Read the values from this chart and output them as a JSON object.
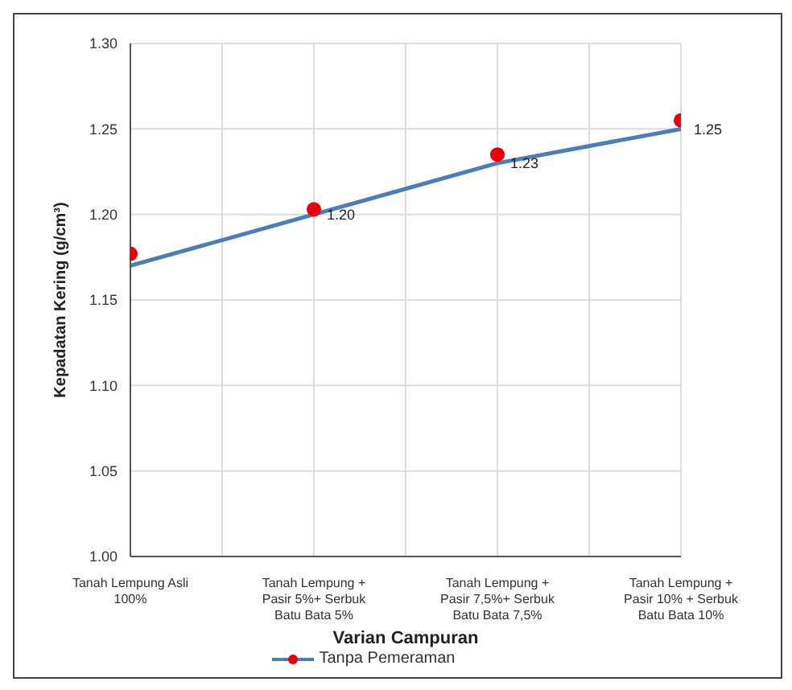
{
  "chart_data": {
    "type": "line",
    "xlabel": "Varian Campuran",
    "ylabel": "Kepadatan Kering (g/cm³)",
    "categories": [
      "Tanah Lempung Asli 100%",
      "Tanah Lempung  + Pasir 5%+ Serbuk Batu Bata 5%",
      "Tanah Lempung + Pasir 7,5%+ Serbuk Batu Bata 7,5%",
      "Tanah Lempung + Pasir 10% + Serbuk Batu Bata 10%"
    ],
    "series": [
      {
        "name": "Tanpa Pemeraman",
        "color": "#4a7ebb",
        "values": [
          1.17,
          1.2,
          1.23,
          1.25
        ],
        "value_labels": [
          null,
          "1.20",
          "1.23",
          "1.25"
        ],
        "marker": "none"
      },
      {
        "type": "scatter",
        "color": "#e8000b",
        "values": [
          1.177,
          1.203,
          1.235,
          1.255
        ],
        "marker": "circle"
      }
    ],
    "ylim": [
      1.0,
      1.3
    ],
    "yticks": [
      {
        "value": 1.0,
        "label": "1.00"
      },
      {
        "value": 1.05,
        "label": "1.05"
      },
      {
        "value": 1.1,
        "label": "1.10"
      },
      {
        "value": 1.15,
        "label": "1.15"
      },
      {
        "value": 1.2,
        "label": "1.20"
      },
      {
        "value": 1.25,
        "label": "1.25"
      },
      {
        "value": 1.3,
        "label": "1.30"
      }
    ],
    "grid": true,
    "legend": "bottom"
  }
}
